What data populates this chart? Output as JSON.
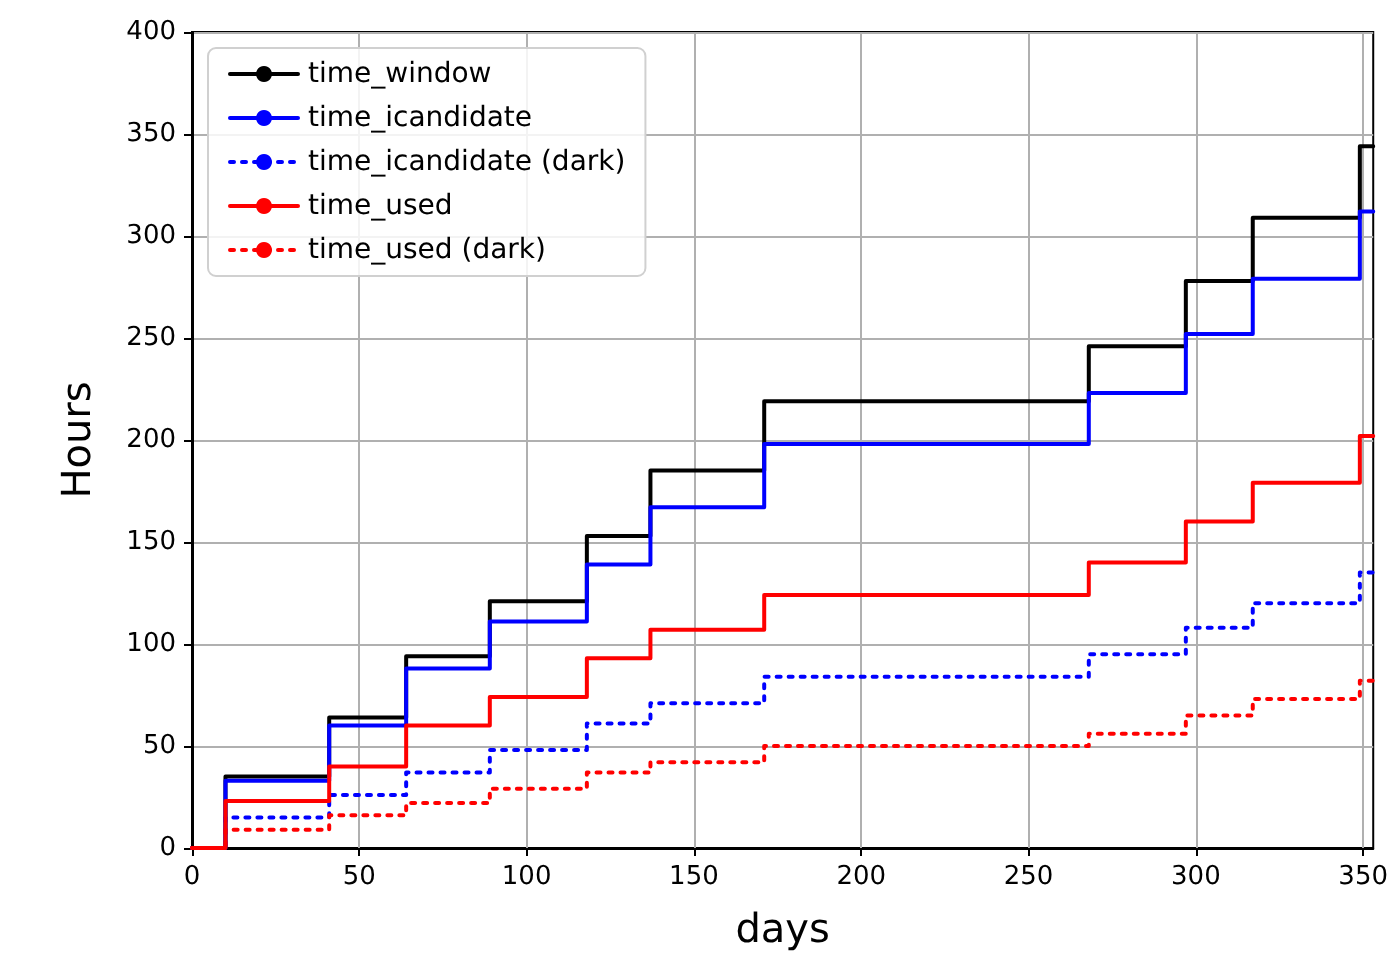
{
  "chart_data": {
    "type": "step",
    "xlabel": "days",
    "ylabel": "Hours",
    "x": [
      0,
      10,
      41,
      64,
      89,
      118,
      137,
      171,
      268,
      297,
      317,
      349,
      353
    ],
    "series": [
      {
        "name": "time_window",
        "color": "#000000",
        "line_style": "solid",
        "values": [
          0,
          35,
          64,
          94,
          121,
          153,
          185,
          219,
          246,
          278,
          309,
          344,
          344
        ]
      },
      {
        "name": "time_icandidate",
        "color": "#0000ff",
        "line_style": "solid",
        "values": [
          0,
          33,
          60,
          88,
          111,
          139,
          167,
          198,
          223,
          252,
          279,
          312,
          312
        ]
      },
      {
        "name": "time_icandidate (dark)",
        "color": "#0000ff",
        "line_style": "dotted",
        "values": [
          0,
          15,
          26,
          37,
          48,
          61,
          71,
          84,
          95,
          108,
          120,
          135,
          135
        ]
      },
      {
        "name": "time_used",
        "color": "#ff0000",
        "line_style": "solid",
        "values": [
          0,
          23,
          40,
          60,
          74,
          93,
          107,
          124,
          140,
          160,
          179,
          202,
          202
        ]
      },
      {
        "name": "time_used (dark)",
        "color": "#ff0000",
        "line_style": "dotted",
        "values": [
          0,
          9,
          16,
          22,
          29,
          37,
          42,
          50,
          56,
          65,
          73,
          82,
          82
        ]
      }
    ],
    "xlim": [
      0,
      353
    ],
    "xticks": [
      0,
      50,
      100,
      150,
      200,
      250,
      300,
      350
    ],
    "ylim": [
      0,
      400
    ],
    "yticks": [
      0,
      50,
      100,
      150,
      200,
      250,
      300,
      350,
      400
    ],
    "grid": true,
    "legend": "top left",
    "marker": "none"
  }
}
